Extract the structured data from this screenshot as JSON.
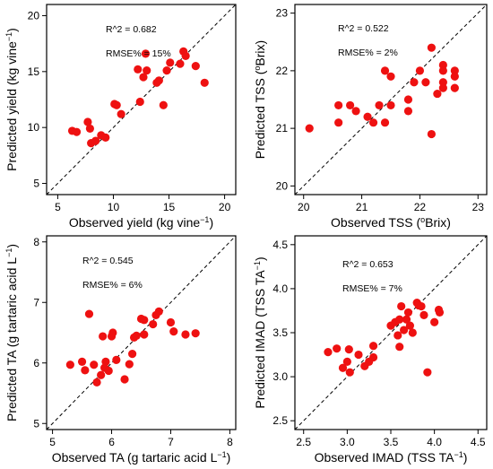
{
  "colors": {
    "point": "#ee1111",
    "frame": "#000000",
    "reference_line": "#000000"
  },
  "chart_data": [
    {
      "type": "scatter",
      "panel": "top-left",
      "xlabel": {
        "main": "Observed yield (kg vine",
        "sup": "−1",
        "tail": ")"
      },
      "ylabel": {
        "main": "Predicted yield (kg vine",
        "sup": "−1",
        "tail": ")"
      },
      "xlim": [
        4,
        21
      ],
      "ylim": [
        4,
        21
      ],
      "xticks": [
        5,
        10,
        15,
        20
      ],
      "yticks": [
        5,
        10,
        15,
        20
      ],
      "reference_line": "1:1 dashed",
      "annotations": [
        "R^2 = 0.682",
        "RMSE% = 15%"
      ],
      "points": [
        [
          6.3,
          9.7
        ],
        [
          6.7,
          9.6
        ],
        [
          7.7,
          10.5
        ],
        [
          7.9,
          9.9
        ],
        [
          8.0,
          8.6
        ],
        [
          8.4,
          8.8
        ],
        [
          8.9,
          9.3
        ],
        [
          9.3,
          9.1
        ],
        [
          10.1,
          12.1
        ],
        [
          10.3,
          12.0
        ],
        [
          10.7,
          11.2
        ],
        [
          12.2,
          15.2
        ],
        [
          12.4,
          12.3
        ],
        [
          12.7,
          14.5
        ],
        [
          12.9,
          16.6
        ],
        [
          13.0,
          15.1
        ],
        [
          13.9,
          14.0
        ],
        [
          14.1,
          14.2
        ],
        [
          14.5,
          12.0
        ],
        [
          14.8,
          15.1
        ],
        [
          15.1,
          15.8
        ],
        [
          16.0,
          15.7
        ],
        [
          16.3,
          16.8
        ],
        [
          16.5,
          16.4
        ],
        [
          17.4,
          15.5
        ],
        [
          18.2,
          14.0
        ]
      ]
    },
    {
      "type": "scatter",
      "panel": "top-right",
      "xlabel": {
        "main": "Observed TSS (",
        "sup": "o",
        "tail": "Brix)"
      },
      "ylabel": {
        "main": "Predicted TSS (",
        "sup": "o",
        "tail": "Brix)"
      },
      "xlim": [
        19.85,
        23.15
      ],
      "ylim": [
        19.85,
        23.15
      ],
      "xticks": [
        20,
        21,
        22,
        23
      ],
      "yticks": [
        20,
        21,
        22,
        23
      ],
      "reference_line": "1:1 dashed",
      "annotations": [
        "R^2 = 0.522",
        "RMSE% = 2%"
      ],
      "points": [
        [
          20.1,
          21.0
        ],
        [
          20.6,
          21.4
        ],
        [
          20.6,
          21.1
        ],
        [
          20.8,
          21.4
        ],
        [
          20.9,
          21.3
        ],
        [
          21.1,
          21.2
        ],
        [
          21.2,
          21.1
        ],
        [
          21.3,
          21.4
        ],
        [
          21.4,
          21.1
        ],
        [
          21.5,
          21.4
        ],
        [
          21.4,
          22.0
        ],
        [
          21.5,
          21.9
        ],
        [
          21.8,
          21.3
        ],
        [
          21.8,
          21.5
        ],
        [
          21.9,
          21.8
        ],
        [
          22.0,
          22.0
        ],
        [
          22.1,
          21.8
        ],
        [
          22.2,
          22.4
        ],
        [
          22.2,
          20.9
        ],
        [
          22.3,
          21.6
        ],
        [
          22.4,
          22.1
        ],
        [
          22.4,
          22.0
        ],
        [
          22.4,
          21.8
        ],
        [
          22.4,
          21.7
        ],
        [
          22.6,
          22.0
        ],
        [
          22.6,
          21.9
        ],
        [
          22.6,
          21.7
        ]
      ]
    },
    {
      "type": "scatter",
      "panel": "bottom-left",
      "xlabel": {
        "main": "Observed TA (g tartaric acid  L",
        "sup": "−1",
        "tail": ")"
      },
      "ylabel": {
        "main": "Predicted TA (g tartaric acid  L",
        "sup": "−1",
        "tail": ")"
      },
      "xlim": [
        4.9,
        8.1
      ],
      "ylim": [
        4.9,
        8.1
      ],
      "xticks": [
        5,
        6,
        7,
        8
      ],
      "yticks": [
        5,
        6,
        7,
        8
      ],
      "reference_line": "1:1 dashed",
      "annotations": [
        "R^2 = 0.545",
        "RMSE% = 6%"
      ],
      "points": [
        [
          5.3,
          5.97
        ],
        [
          5.5,
          6.02
        ],
        [
          5.55,
          5.88
        ],
        [
          5.62,
          6.81
        ],
        [
          5.7,
          5.97
        ],
        [
          5.75,
          5.68
        ],
        [
          5.82,
          5.8
        ],
        [
          5.85,
          6.44
        ],
        [
          5.88,
          5.92
        ],
        [
          5.9,
          6.02
        ],
        [
          5.95,
          5.87
        ],
        [
          6.0,
          6.44
        ],
        [
          6.02,
          6.5
        ],
        [
          6.08,
          6.05
        ],
        [
          6.22,
          5.73
        ],
        [
          6.3,
          5.98
        ],
        [
          6.35,
          6.15
        ],
        [
          6.38,
          6.42
        ],
        [
          6.42,
          6.45
        ],
        [
          6.5,
          6.73
        ],
        [
          6.55,
          6.71
        ],
        [
          6.55,
          6.47
        ],
        [
          6.7,
          6.64
        ],
        [
          6.75,
          6.79
        ],
        [
          6.8,
          6.85
        ],
        [
          7.0,
          6.67
        ],
        [
          7.05,
          6.52
        ],
        [
          7.25,
          6.47
        ],
        [
          7.42,
          6.49
        ]
      ]
    },
    {
      "type": "scatter",
      "panel": "bottom-right",
      "xlabel": {
        "main": "Observed IMAD (TSS TA",
        "sup": "−1",
        "tail": ")"
      },
      "ylabel": {
        "main": "Predicted IMAD (TSS TA",
        "sup": "−1",
        "tail": ")"
      },
      "xlim": [
        2.4,
        4.6
      ],
      "ylim": [
        2.4,
        4.6
      ],
      "xticks": [
        2.5,
        3.0,
        3.5,
        4.0,
        4.5
      ],
      "yticks": [
        2.5,
        3.0,
        3.5,
        4.0,
        4.5
      ],
      "tick_format": "fixed1",
      "reference_line": "1:1 dashed",
      "annotations": [
        "R^2 = 0.653",
        "RMSE% = 7%"
      ],
      "points": [
        [
          2.78,
          3.28
        ],
        [
          2.88,
          3.32
        ],
        [
          2.95,
          3.1
        ],
        [
          3.0,
          3.17
        ],
        [
          3.02,
          3.31
        ],
        [
          3.03,
          3.05
        ],
        [
          3.13,
          3.25
        ],
        [
          3.2,
          3.12
        ],
        [
          3.25,
          3.17
        ],
        [
          3.3,
          3.35
        ],
        [
          3.3,
          3.22
        ],
        [
          3.5,
          3.58
        ],
        [
          3.55,
          3.62
        ],
        [
          3.58,
          3.47
        ],
        [
          3.6,
          3.65
        ],
        [
          3.6,
          3.34
        ],
        [
          3.62,
          3.8
        ],
        [
          3.65,
          3.53
        ],
        [
          3.68,
          3.65
        ],
        [
          3.7,
          3.73
        ],
        [
          3.72,
          3.58
        ],
        [
          3.75,
          3.5
        ],
        [
          3.8,
          3.84
        ],
        [
          3.82,
          3.81
        ],
        [
          3.85,
          3.8
        ],
        [
          3.88,
          3.7
        ],
        [
          3.92,
          3.05
        ],
        [
          4.0,
          3.62
        ],
        [
          4.05,
          3.76
        ],
        [
          4.06,
          3.73
        ]
      ]
    }
  ]
}
